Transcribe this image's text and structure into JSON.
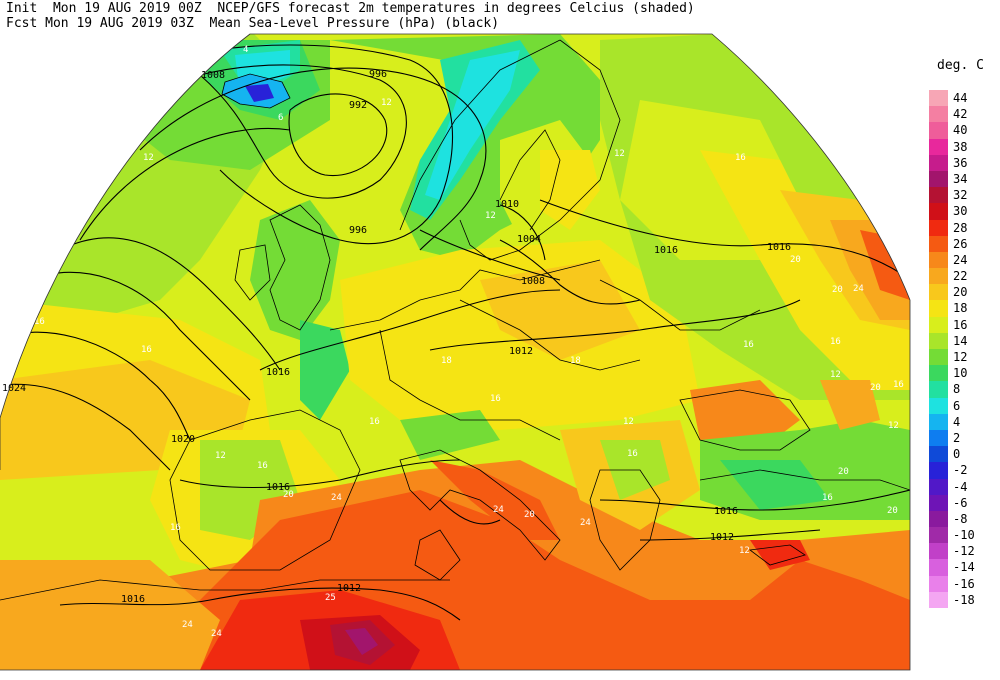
{
  "header": {
    "line1": "Init  Mon 19 AUG 2019 00Z  NCEP/GFS forecast 2m temperatures in degrees Celcius (shaded)",
    "line2": "Fcst Mon 19 AUG 2019 03Z  Mean Sea-Level Pressure (hPa) (black)"
  },
  "legend": {
    "unit": "deg. C",
    "entries": [
      {
        "label": "44",
        "color": "#f7a6b5"
      },
      {
        "label": "42",
        "color": "#f47fa2"
      },
      {
        "label": "40",
        "color": "#ef5d9a"
      },
      {
        "label": "38",
        "color": "#e8289c"
      },
      {
        "label": "36",
        "color": "#c61c8c"
      },
      {
        "label": "34",
        "color": "#a2156c"
      },
      {
        "label": "32",
        "color": "#b41233"
      },
      {
        "label": "30",
        "color": "#d01018"
      },
      {
        "label": "28",
        "color": "#f02a10"
      },
      {
        "label": "26",
        "color": "#f55a12"
      },
      {
        "label": "24",
        "color": "#f7881a"
      },
      {
        "label": "22",
        "color": "#f8a81e"
      },
      {
        "label": "20",
        "color": "#f8c81c"
      },
      {
        "label": "18",
        "color": "#f5e414"
      },
      {
        "label": "16",
        "color": "#d8ee1c"
      },
      {
        "label": "14",
        "color": "#a9e52a"
      },
      {
        "label": "12",
        "color": "#74dc36"
      },
      {
        "label": "10",
        "color": "#3bd85e"
      },
      {
        "label": "8",
        "color": "#22e0a0"
      },
      {
        "label": "6",
        "color": "#1ee2e0"
      },
      {
        "label": "4",
        "color": "#15b4f0"
      },
      {
        "label": "2",
        "color": "#0e7df0"
      },
      {
        "label": "0",
        "color": "#0f4ad8"
      },
      {
        "label": "-2",
        "color": "#2822d8"
      },
      {
        "label": "-4",
        "color": "#5118c8"
      },
      {
        "label": "-6",
        "color": "#6e14b6"
      },
      {
        "label": "-8",
        "color": "#8a1a9e"
      },
      {
        "label": "-10",
        "color": "#a02aa8"
      },
      {
        "label": "-12",
        "color": "#c140c8"
      },
      {
        "label": "-14",
        "color": "#d860de"
      },
      {
        "label": "-16",
        "color": "#e980ea"
      },
      {
        "label": "-18",
        "color": "#f4a6f2"
      }
    ]
  },
  "map": {
    "pressure_labels": [
      "1008",
      "996",
      "992",
      "996",
      "1010",
      "1004",
      "1008",
      "1016",
      "1016",
      "1012",
      "1024",
      "1016",
      "1020",
      "1016",
      "1016",
      "1012",
      "1012",
      "1016"
    ],
    "temp_labels": [
      "4",
      "6",
      "12",
      "12",
      "12",
      "16",
      "16",
      "16",
      "20",
      "24",
      "16",
      "18",
      "12",
      "16",
      "20",
      "18",
      "16",
      "16",
      "12",
      "24",
      "24",
      "20",
      "16",
      "20",
      "24",
      "12",
      "16",
      "24",
      "24",
      "25",
      "20",
      "12",
      "16",
      "20",
      "12",
      "20",
      "16",
      "16",
      "12"
    ]
  }
}
